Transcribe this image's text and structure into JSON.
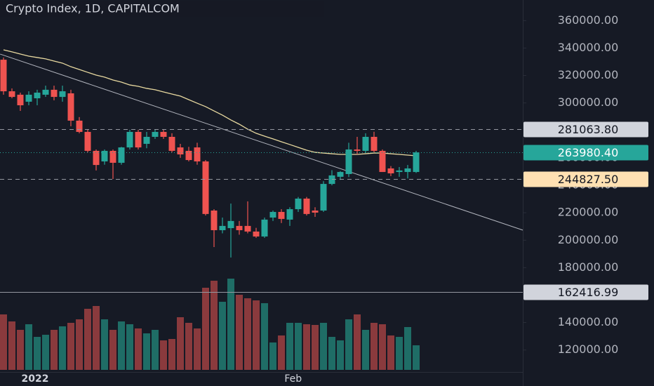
{
  "chart_data": {
    "type": "candlestick",
    "title": "Crypto Index, 1D, CAPITALCOM",
    "ylim": [
      104000,
      375000
    ],
    "yticks": [
      {
        "value": 120000,
        "label": "120000.00"
      },
      {
        "value": 140000,
        "label": "140000.00"
      },
      {
        "value": 160000,
        "label": "160000.00"
      },
      {
        "value": 180000,
        "label": "180000.00"
      },
      {
        "value": 200000,
        "label": "200000.00"
      },
      {
        "value": 220000,
        "label": "220000.00"
      },
      {
        "value": 240000,
        "label": "240000.00"
      },
      {
        "value": 260000,
        "label": "260000.00"
      },
      {
        "value": 280000,
        "label": "280000.00"
      },
      {
        "value": 300000,
        "label": "300000.00"
      },
      {
        "value": 320000,
        "label": "320000.00"
      },
      {
        "value": 340000,
        "label": "340000.00"
      },
      {
        "value": 360000,
        "label": "360000.00"
      }
    ],
    "xticks": [
      {
        "value": 3.75,
        "label": "2022"
      },
      {
        "value": 34.4,
        "label": "Feb"
      }
    ],
    "up_color": "#26a69a",
    "down_color": "#ef5350",
    "volume_up_color": "#1f6d66",
    "volume_down_color": "#8a3a3d",
    "open": [
      331500,
      308500,
      306000,
      300900,
      303400,
      306000,
      309600,
      304400,
      307000,
      287100,
      278900,
      265100,
      257400,
      265100,
      256400,
      267600,
      278900,
      270200,
      275300,
      278900,
      275300,
      267600,
      265100,
      267600,
      257400,
      221600,
      207300,
      208800,
      210400,
      210400,
      206300,
      202700,
      216500,
      220600,
      215000,
      222600,
      230300,
      221600,
      221600,
      241000,
      246200,
      248200,
      266100,
      265100,
      275300,
      265100,
      252300,
      249700,
      249700,
      249700
    ],
    "high": [
      333100,
      310600,
      307500,
      308500,
      309600,
      312600,
      312600,
      312600,
      309600,
      289700,
      280400,
      266100,
      266100,
      266100,
      268000,
      280400,
      280400,
      278900,
      280400,
      280400,
      277900,
      270200,
      268000,
      271000,
      258400,
      222600,
      216500,
      226700,
      214000,
      228300,
      209000,
      216500,
      221600,
      222600,
      224000,
      231500,
      231500,
      224000,
      243000,
      251000,
      250300,
      271000,
      275300,
      277900,
      279000,
      266100,
      254000,
      253300,
      254800,
      265100
    ],
    "low": [
      306000,
      303400,
      294200,
      298300,
      298300,
      304400,
      301900,
      300900,
      283000,
      277900,
      264000,
      250800,
      255000,
      244600,
      255000,
      266100,
      266100,
      267000,
      273800,
      273800,
      264000,
      260000,
      257400,
      255000,
      218000,
      195000,
      205000,
      187400,
      204000,
      205000,
      201700,
      201700,
      214000,
      212500,
      210400,
      220600,
      218000,
      217000,
      220600,
      240000,
      244000,
      246000,
      262500,
      263500,
      264000,
      249700,
      246700,
      246200,
      245000,
      249000
    ],
    "close": [
      308500,
      304400,
      298300,
      306000,
      307500,
      309600,
      304400,
      308500,
      287100,
      278900,
      265100,
      254800,
      265100,
      256400,
      267600,
      278900,
      267600,
      275300,
      278900,
      275300,
      265100,
      262500,
      258400,
      257400,
      219100,
      207300,
      210400,
      214000,
      207300,
      206300,
      202700,
      215000,
      220600,
      215500,
      222600,
      230300,
      219100,
      220100,
      241000,
      247200,
      249700,
      266100,
      265100,
      275300,
      265100,
      249700,
      248700,
      250800,
      252300,
      263980.4
    ],
    "volume_lim": [
      0,
      150
    ],
    "volume": [
      79,
      69,
      57,
      65,
      47,
      50,
      57,
      62,
      67,
      72,
      87,
      91,
      72,
      57,
      69,
      65,
      59,
      52,
      57,
      42,
      44,
      75,
      67,
      59,
      117,
      127,
      97,
      130,
      107,
      102,
      99,
      95,
      39,
      49,
      67,
      67,
      65,
      64,
      67,
      47,
      42,
      72,
      79,
      57,
      67,
      65,
      49,
      47,
      61,
      35
    ],
    "moving_average": {
      "color": "#e8d9a0",
      "values": [
        338700,
        337200,
        335600,
        334100,
        333100,
        332100,
        330500,
        329000,
        326400,
        324400,
        322300,
        320300,
        318800,
        316700,
        315200,
        313100,
        312100,
        310600,
        309600,
        308000,
        306500,
        305000,
        302400,
        299800,
        297300,
        294200,
        291100,
        287600,
        284500,
        280900,
        277900,
        275800,
        273800,
        271700,
        269700,
        267600,
        265600,
        264000,
        263500,
        263000,
        262500,
        262500,
        262500,
        263000,
        263500,
        263500,
        263000,
        262500,
        262000,
        261500
      ]
    },
    "trend_line": {
      "color": "#b2b5be",
      "x": [
        -0.4,
        61.7
      ],
      "values": [
        335600,
        207300
      ]
    },
    "price_lines": [
      {
        "value": 281063.8,
        "label": "281063.80",
        "style": "dashed",
        "color": "#d1d4dc",
        "text_color": "#131722"
      },
      {
        "value": 263980.4,
        "label": "263980.40",
        "style": "dotted",
        "color": "#26a69a",
        "text_color": "#ffffff"
      },
      {
        "value": 244827.5,
        "label": "244827.50",
        "style": "dashed",
        "color": "#ffe0b2",
        "text_color": "#131722"
      },
      {
        "value": 162416.99,
        "label": "162416.99",
        "style": "solid",
        "color": "#d1d4dc",
        "text_color": "#131722"
      }
    ]
  }
}
